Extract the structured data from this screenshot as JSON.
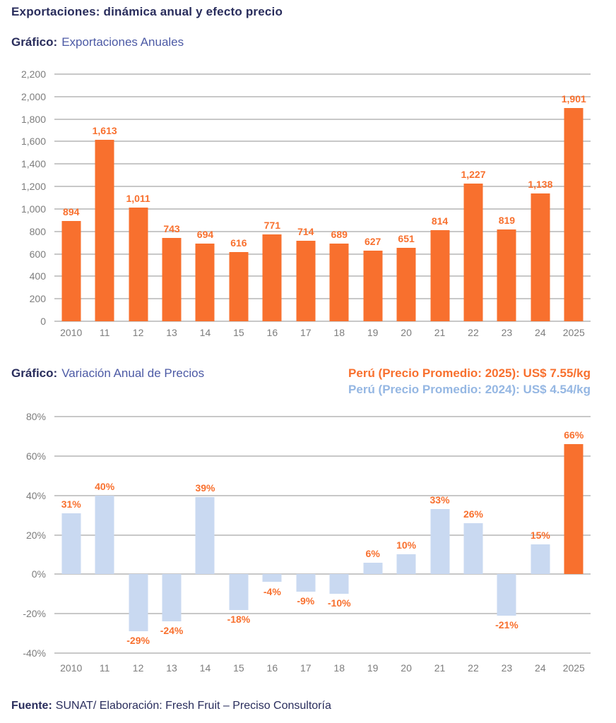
{
  "page": {
    "title": "Exportaciones: dinámica anual y efecto precio",
    "footer_prefix": "Fuente:",
    "footer_text": "SUNAT/ Elaboración: Fresh Fruit – Preciso Consultoría"
  },
  "colors": {
    "title_navy": "#292d5c",
    "heading_slate": "#4c5aa5",
    "orange": "#f8702e",
    "light_blue_bar": "#c9d9f1",
    "annotation_blue": "#95b7e3",
    "axis_gray": "#7d7d7d",
    "grid_gray": "#c8c8c8"
  },
  "chart_data": [
    {
      "type": "bar",
      "title_prefix": "Gráfico:",
      "title": "Exportaciones Anuales",
      "categories": [
        "2010",
        "11",
        "12",
        "13",
        "14",
        "15",
        "16",
        "17",
        "18",
        "19",
        "20",
        "21",
        "22",
        "23",
        "24",
        "2025"
      ],
      "values": [
        894,
        1613,
        1011,
        743,
        694,
        616,
        771,
        714,
        689,
        627,
        651,
        814,
        1227,
        819,
        1138,
        1901
      ],
      "value_labels": [
        "894",
        "1,613",
        "1,011",
        "743",
        "694",
        "616",
        "771",
        "714",
        "689",
        "627",
        "651",
        "814",
        "1,227",
        "819",
        "1,138",
        "1,901"
      ],
      "ylim": [
        0,
        2200
      ],
      "yticks": [
        {
          "v": 2200,
          "label": "2,200"
        },
        {
          "v": 2000,
          "label": "2,000"
        },
        {
          "v": 1800,
          "label": "1,800"
        },
        {
          "v": 1600,
          "label": "1,600"
        },
        {
          "v": 1400,
          "label": "1,400"
        },
        {
          "v": 1200,
          "label": "1,200"
        },
        {
          "v": 1000,
          "label": "1,000"
        },
        {
          "v": 800,
          "label": "800"
        },
        {
          "v": 600,
          "label": "600"
        },
        {
          "v": 400,
          "label": "400"
        },
        {
          "v": 200,
          "label": "200"
        },
        {
          "v": 0,
          "label": "0"
        }
      ],
      "grid": true,
      "legend": "none",
      "bar_color": "#f8702e",
      "label_color": "#f8702e"
    },
    {
      "type": "bar",
      "title_prefix": "Gráfico:",
      "title": "Variación Anual de Precios",
      "annotations": [
        {
          "text": "Perú (Precio Promedio: 2025): US$ 7.55/kg",
          "color": "#f8702e"
        },
        {
          "text": "Perú (Precio Promedio: 2024): US$ 4.54/kg",
          "color": "#95b7e3"
        }
      ],
      "categories": [
        "2010",
        "11",
        "12",
        "13",
        "14",
        "15",
        "16",
        "17",
        "18",
        "19",
        "20",
        "21",
        "22",
        "23",
        "24",
        "2025"
      ],
      "values": [
        31,
        40,
        -29,
        -24,
        39,
        -18,
        -4,
        -9,
        -10,
        6,
        10,
        33,
        26,
        -21,
        15,
        66
      ],
      "value_labels": [
        "31%",
        "40%",
        "-29%",
        "-24%",
        "39%",
        "-18%",
        "-4%",
        "-9%",
        "-10%",
        "6%",
        "10%",
        "33%",
        "26%",
        "-21%",
        "15%",
        "66%"
      ],
      "ylim": [
        -40,
        80
      ],
      "yticks": [
        {
          "v": 80,
          "label": "80%"
        },
        {
          "v": 60,
          "label": "60%"
        },
        {
          "v": 40,
          "label": "40%"
        },
        {
          "v": 20,
          "label": "20%"
        },
        {
          "v": 0,
          "label": "0%"
        },
        {
          "v": -20,
          "label": "-20%"
        },
        {
          "v": -40,
          "label": "-40%"
        }
      ],
      "grid": true,
      "legend": "none",
      "bar_color": "#c9d9f1",
      "highlight": {
        "index": 15,
        "color": "#f8702e"
      },
      "label_color": "#f8702e"
    }
  ]
}
